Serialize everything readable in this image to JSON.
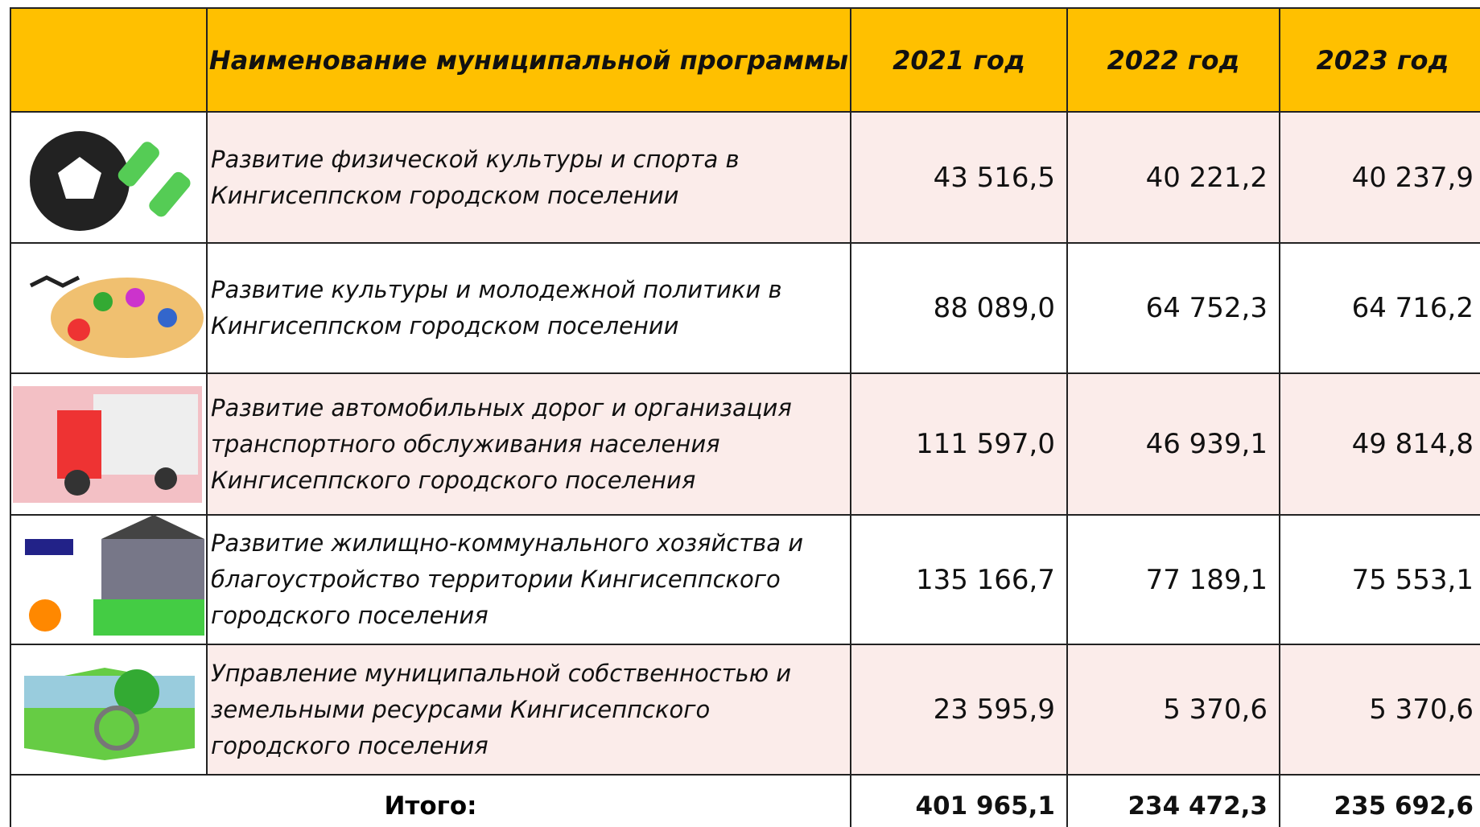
{
  "table": {
    "header": [
      "Наименование муниципальной программы",
      "2021 год",
      "2022 год",
      "2023 год"
    ],
    "rows": [
      [
        "Развитие физической культуры и спорта в Кингисеппском городском поселении",
        "43 516,5",
        "40 221,2",
        "40 237,9"
      ],
      [
        "Развитие культуры и  молодежной политики в Кингисеппском городском поселении",
        "88 089,0",
        "64 752,3",
        "64 716,2"
      ],
      [
        "Развитие автомобильных дорог и организация транспортного обслуживания населения Кингисеппского городского поселения",
        "111 597,0",
        "46 939,1",
        "49 814,8"
      ],
      [
        "Развитие жилищно-коммунального хозяйства и благоустройство территории Кингисеппского городского поселения",
        "135 166,7",
        "77 189,1",
        "75 553,1"
      ],
      [
        "Управление муниципальной собственностью и земельными ресурсами Кингисеппского городского поселения",
        "23 595,9",
        "5 370,6",
        "5 370,6"
      ]
    ],
    "total": [
      "Итого:",
      "401 965,1",
      "234 472,3",
      "235 692,6"
    ]
  }
}
